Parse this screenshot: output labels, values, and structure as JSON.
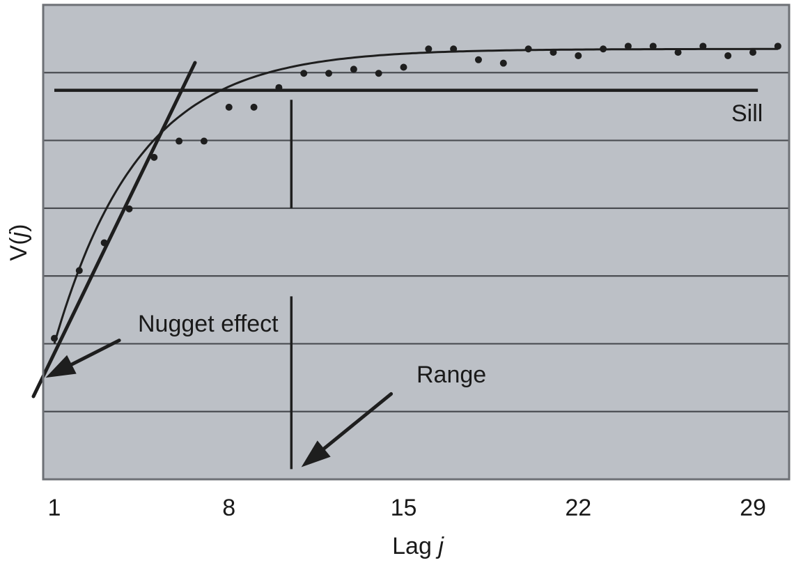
{
  "chart_data": {
    "type": "scatter",
    "title": "",
    "xlabel": "Lag j",
    "xlabel_parts": {
      "text": "Lag ",
      "italic": "j"
    },
    "ylabel": "V(j)",
    "ylabel_parts": {
      "pre": "V(",
      "italic": "j",
      "post": ")"
    },
    "x_ticks": [
      1,
      8,
      15,
      22,
      29
    ],
    "x_tick_labels": [
      "1",
      "8",
      "15",
      "22",
      "29"
    ],
    "xlim": [
      0.55,
      30.45
    ],
    "ylim": [
      0,
      7
    ],
    "y_gridlines": [
      1,
      2,
      3,
      4,
      5,
      6
    ],
    "y_tick_labels_shown": false,
    "grid": true,
    "background_color": "#bcc0c6",
    "grid_color": "#4a4d52",
    "mark_color": "#1e1e1e",
    "series": [
      {
        "name": "empirical variogram",
        "kind": "points",
        "x": [
          1,
          2,
          3,
          4,
          5,
          6,
          7,
          8,
          9,
          10,
          11,
          12,
          13,
          14,
          15,
          16,
          17,
          18,
          19,
          20,
          21,
          22,
          23,
          24,
          25,
          26,
          27,
          28,
          29,
          30
        ],
        "y": [
          2.08,
          3.08,
          3.49,
          3.99,
          4.75,
          4.99,
          4.99,
          5.49,
          5.49,
          5.78,
          5.99,
          5.99,
          6.05,
          5.99,
          6.08,
          6.35,
          6.35,
          6.19,
          6.14,
          6.35,
          6.3,
          6.25,
          6.35,
          6.39,
          6.39,
          6.3,
          6.39,
          6.25,
          6.3,
          6.39
        ]
      },
      {
        "name": "fitted model",
        "kind": "curve",
        "model": "exponential",
        "nugget": 2.0,
        "sill": 6.35,
        "x_start": 1,
        "x_end": 30,
        "scale": 3.4
      },
      {
        "name": "initial slope tangent",
        "kind": "line",
        "x": [
          0.1,
          6.7
        ],
        "y": [
          1.22,
          6.1
        ]
      }
    ],
    "reference_lines": [
      {
        "name": "sill",
        "orientation": "horizontal",
        "value": 5.74,
        "x_from": 0.55,
        "x_to": 29.2,
        "label": "Sill"
      },
      {
        "name": "range",
        "orientation": "vertical",
        "value": 10.5,
        "y_from": 0.15,
        "y_to": 5.6,
        "gap": [
          2.7,
          4.0
        ]
      }
    ],
    "annotations": [
      {
        "name": "nugget-effect",
        "text": "Nugget effect",
        "arrow_from": [
          3.6,
          2.05
        ],
        "arrow_to": [
          0.65,
          1.5
        ]
      },
      {
        "name": "range",
        "text": "Range",
        "arrow_from": [
          14.5,
          1.26
        ],
        "arrow_to": [
          10.9,
          0.18
        ]
      },
      {
        "name": "sill",
        "text": "Sill"
      }
    ]
  }
}
